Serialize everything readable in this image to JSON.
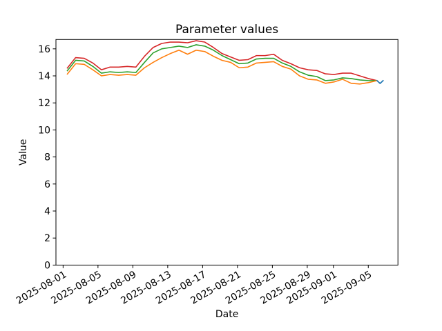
{
  "figure": {
    "background": "#ffffff",
    "text_color": "#000000"
  },
  "chart_data": {
    "type": "line",
    "title": "Parameter values",
    "xlabel": "Date",
    "ylabel": "Value",
    "grid": false,
    "legend": "none",
    "ylim": [
      0,
      16.69
    ],
    "xlim_days": [
      -0.82,
      38.4
    ],
    "y_ticks": [
      0,
      2,
      4,
      6,
      8,
      10,
      12,
      14,
      16
    ],
    "x_ticks": [
      {
        "day": 0,
        "label": "2025-08-01"
      },
      {
        "day": 4,
        "label": "2025-08-05"
      },
      {
        "day": 8,
        "label": "2025-08-09"
      },
      {
        "day": 12,
        "label": "2025-08-13"
      },
      {
        "day": 16,
        "label": "2025-08-17"
      },
      {
        "day": 20,
        "label": "2025-08-21"
      },
      {
        "day": 24,
        "label": "2025-08-25"
      },
      {
        "day": 28,
        "label": "2025-08-29"
      },
      {
        "day": 31,
        "label": "2025-09-01"
      },
      {
        "day": 35,
        "label": "2025-09-05"
      }
    ],
    "dates": [
      "2025-08-01",
      "2025-08-02",
      "2025-08-03",
      "2025-08-04",
      "2025-08-05",
      "2025-08-06",
      "2025-08-07",
      "2025-08-08",
      "2025-08-09",
      "2025-08-10",
      "2025-08-11",
      "2025-08-12",
      "2025-08-13",
      "2025-08-14",
      "2025-08-15",
      "2025-08-16",
      "2025-08-17",
      "2025-08-18",
      "2025-08-19",
      "2025-08-20",
      "2025-08-21",
      "2025-08-22",
      "2025-08-23",
      "2025-08-24",
      "2025-08-25",
      "2025-08-26",
      "2025-08-27",
      "2025-08-28",
      "2025-08-29",
      "2025-08-30",
      "2025-08-31",
      "2025-09-01",
      "2025-09-02",
      "2025-09-03",
      "2025-09-04",
      "2025-09-05",
      "2025-09-06"
    ],
    "data_day_span": [
      0.45,
      36.0
    ],
    "series": [
      {
        "name": "parameter-red",
        "color": "#d62728",
        "values": [
          14.55,
          15.35,
          15.3,
          14.95,
          14.45,
          14.65,
          14.65,
          14.7,
          14.65,
          15.45,
          16.1,
          16.4,
          16.5,
          16.5,
          16.45,
          16.6,
          16.5,
          16.1,
          15.65,
          15.4,
          15.15,
          15.2,
          15.5,
          15.5,
          15.6,
          15.15,
          14.9,
          14.6,
          14.45,
          14.4,
          14.15,
          14.1,
          14.2,
          14.2,
          14.0,
          13.8,
          13.65
        ]
      },
      {
        "name": "parameter-green",
        "color": "#2ca02c",
        "values": [
          14.35,
          15.15,
          15.1,
          14.7,
          14.2,
          14.3,
          14.25,
          14.3,
          14.25,
          15.0,
          15.7,
          16.0,
          16.1,
          16.2,
          16.1,
          16.3,
          16.2,
          15.9,
          15.5,
          15.2,
          14.9,
          14.95,
          15.25,
          15.3,
          15.3,
          14.95,
          14.7,
          14.3,
          14.05,
          13.95,
          13.65,
          13.7,
          13.85,
          13.8,
          13.7,
          13.65,
          13.65
        ]
      },
      {
        "name": "parameter-orange",
        "color": "#ff7f0e",
        "values": [
          14.1,
          14.9,
          14.85,
          14.45,
          14.0,
          14.1,
          14.05,
          14.1,
          14.05,
          14.6,
          15.0,
          15.35,
          15.65,
          15.9,
          15.6,
          15.9,
          15.8,
          15.45,
          15.15,
          15.0,
          14.6,
          14.65,
          14.95,
          15.0,
          15.05,
          14.7,
          14.5,
          14.0,
          13.75,
          13.7,
          13.45,
          13.55,
          13.75,
          13.45,
          13.4,
          13.5,
          13.65
        ]
      }
    ],
    "extra_series": {
      "name": "parameter-blue-tail",
      "color": "#1f77b4",
      "x_day_offsets": [
        36.0,
        36.35,
        36.7
      ],
      "values": [
        13.65,
        13.44,
        13.65
      ]
    }
  }
}
